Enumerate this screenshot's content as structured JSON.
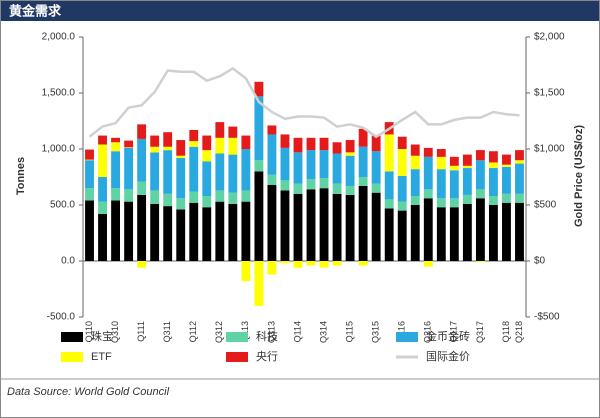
{
  "chart_data": {
    "type": "bar",
    "stacked": true,
    "title": "黄金需求",
    "source": "Data Source: World Gold Council",
    "y_label": "Tonnes",
    "y2_label": "Gold Price (US$/oz)",
    "categories": [
      "Q110",
      null,
      "Q310",
      null,
      "Q111",
      null,
      "Q311",
      null,
      "Q112",
      null,
      "Q312",
      null,
      "Q113",
      null,
      "Q313",
      null,
      "Q114",
      null,
      "Q314",
      null,
      "Q115",
      null,
      "Q315",
      null,
      "Q116",
      null,
      "Q316",
      null,
      "Q117",
      null,
      "Q317",
      null,
      "Q118",
      "Q218"
    ],
    "series": [
      {
        "name": "珠宝",
        "color": "#000000",
        "values": [
          540,
          420,
          540,
          530,
          590,
          510,
          490,
          460,
          520,
          480,
          530,
          510,
          530,
          800,
          680,
          630,
          600,
          640,
          650,
          600,
          590,
          670,
          610,
          470,
          450,
          500,
          560,
          480,
          480,
          510,
          560,
          500,
          520,
          520
        ]
      },
      {
        "name": "科技",
        "color": "#5fd3a3",
        "values": [
          110,
          110,
          110,
          110,
          120,
          120,
          110,
          100,
          100,
          100,
          100,
          100,
          100,
          100,
          90,
          90,
          90,
          90,
          90,
          90,
          80,
          80,
          80,
          80,
          80,
          80,
          80,
          80,
          80,
          80,
          80,
          80,
          80,
          80
        ]
      },
      {
        "name": "金币金砖",
        "color": "#29a9e0",
        "values": [
          250,
          220,
          330,
          370,
          380,
          340,
          390,
          360,
          400,
          310,
          330,
          340,
          370,
          570,
          360,
          290,
          280,
          260,
          250,
          270,
          270,
          270,
          290,
          250,
          230,
          240,
          290,
          260,
          250,
          240,
          260,
          250,
          240,
          270
        ]
      },
      {
        "name": "ETF",
        "color": "#ffff00",
        "values": [
          5,
          290,
          80,
          5,
          -60,
          50,
          30,
          20,
          50,
          100,
          140,
          150,
          -180,
          -400,
          -120,
          -20,
          -60,
          -40,
          -60,
          -40,
          30,
          -40,
          0,
          330,
          240,
          120,
          -50,
          110,
          40,
          20,
          -10,
          50,
          20,
          30
        ]
      },
      {
        "name": "央行",
        "color": "#e41b1b",
        "values": [
          90,
          80,
          40,
          60,
          130,
          100,
          130,
          140,
          100,
          130,
          140,
          100,
          120,
          130,
          80,
          120,
          130,
          110,
          110,
          100,
          110,
          160,
          140,
          110,
          110,
          100,
          80,
          70,
          80,
          100,
          90,
          100,
          90,
          90
        ]
      },
      {
        "name": "国际金价",
        "color": "#d0d0d0",
        "type": "line",
        "axis": "y2",
        "values": [
          1110,
          1200,
          1230,
          1370,
          1390,
          1510,
          1700,
          1690,
          1690,
          1610,
          1650,
          1720,
          1630,
          1420,
          1330,
          1270,
          1290,
          1290,
          1280,
          1200,
          1220,
          1190,
          1110,
          1180,
          1260,
          1330,
          1220,
          1220,
          1260,
          1280,
          1280,
          1330,
          1310,
          1300
        ]
      }
    ],
    "ylim": [
      -500,
      2000
    ],
    "yticks": [
      {
        "value": -500,
        "label": "-500.0"
      },
      {
        "value": 0,
        "label": "0.0"
      },
      {
        "value": 500,
        "label": "500.0"
      },
      {
        "value": 1000,
        "label": "1,000.0"
      },
      {
        "value": 1500,
        "label": "1,500.0"
      },
      {
        "value": 2000,
        "label": "2,000.0"
      }
    ],
    "y2lim": [
      -500,
      2000
    ],
    "y2ticks": [
      {
        "value": -500,
        "label": "-$500"
      },
      {
        "value": 0,
        "label": "$0"
      },
      {
        "value": 500,
        "label": "$500"
      },
      {
        "value": 1000,
        "label": "$1,000"
      },
      {
        "value": 1500,
        "label": "$1,500"
      },
      {
        "value": 2000,
        "label": "$2,000"
      }
    ]
  }
}
